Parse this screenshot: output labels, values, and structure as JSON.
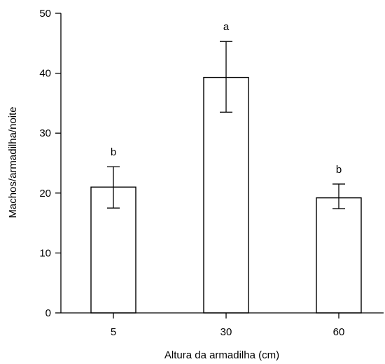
{
  "chart_data": {
    "type": "bar",
    "title": "",
    "xlabel": "Altura da armadilha (cm)",
    "ylabel": "Machos/armadilha/noite",
    "categories": [
      "5",
      "30",
      "60"
    ],
    "values": [
      21,
      39.3,
      19.2
    ],
    "error_low": [
      17.5,
      33.5,
      17.4
    ],
    "error_high": [
      24.4,
      45.3,
      21.5
    ],
    "significance_labels": [
      "b",
      "a",
      "b"
    ],
    "ylim": [
      0,
      50
    ],
    "yticks": [
      0,
      10,
      20,
      30,
      40,
      50
    ],
    "grid": false,
    "legend": "none",
    "colors": {
      "bar_fill": "#ffffff",
      "bar_stroke": "#000000",
      "axis": "#000000",
      "text": "#000000"
    }
  }
}
